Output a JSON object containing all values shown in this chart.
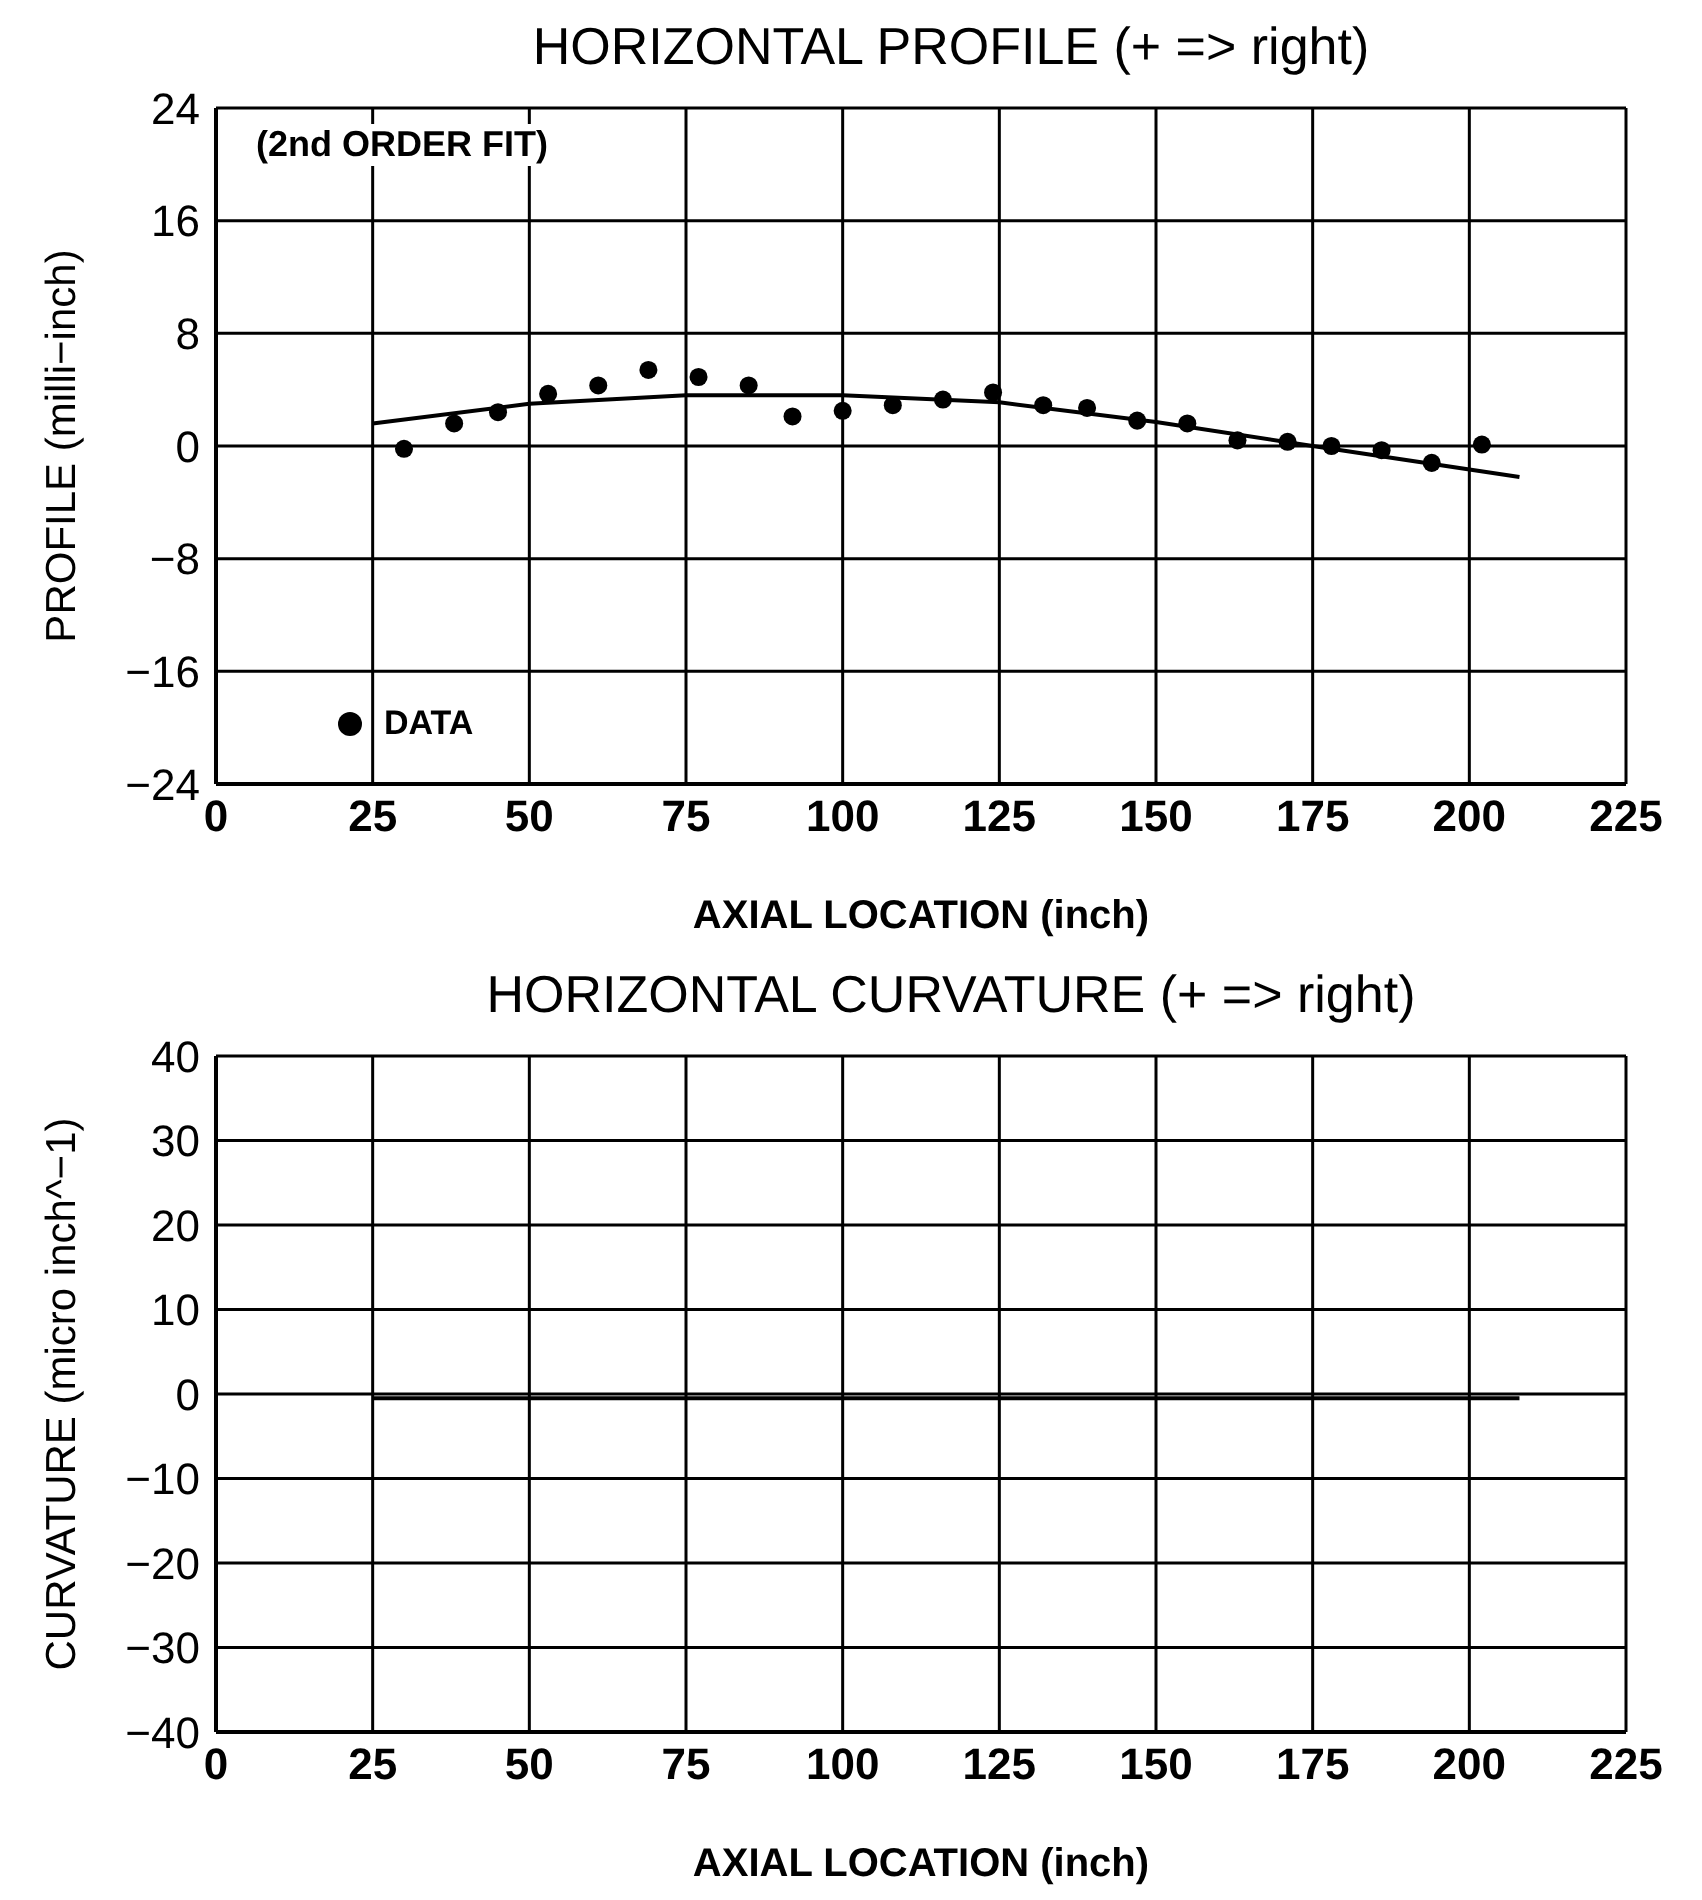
{
  "chart_data": [
    {
      "type": "scatter",
      "title": "HORIZONTAL PROFILE (+ => right)",
      "xlabel": "AXIAL LOCATION (inch)",
      "ylabel": "PROFILE (milli−inch)",
      "xlim": [
        0,
        225
      ],
      "xticks": [
        0,
        25,
        50,
        75,
        100,
        125,
        150,
        175,
        200,
        225
      ],
      "ylim": [
        -24,
        24
      ],
      "yticks": [
        -24,
        -16,
        -8,
        0,
        8,
        16,
        24
      ],
      "grid": true,
      "legend": "bottom left",
      "annotations": [
        "(2nd ORDER FIT)"
      ],
      "series": [
        {
          "name": "DATA",
          "marker": "circle",
          "color": "#000000",
          "x": [
            30,
            38,
            45,
            53,
            61,
            69,
            77,
            85,
            92,
            100,
            108,
            116,
            124,
            132,
            139,
            147,
            155,
            163,
            171,
            178,
            186,
            194,
            202
          ],
          "values": [
            -0.2,
            1.6,
            2.4,
            3.7,
            4.3,
            5.4,
            4.9,
            4.3,
            2.1,
            2.5,
            2.9,
            3.3,
            3.8,
            2.9,
            2.7,
            1.8,
            1.6,
            0.4,
            0.3,
            0,
            -0.3,
            -1.2,
            0.1
          ]
        },
        {
          "type": "line",
          "color": "#000000",
          "x": [
            25,
            50,
            75,
            100,
            125,
            150,
            175,
            208
          ],
          "values": [
            1.6,
            3.0,
            3.6,
            3.6,
            3.1,
            1.7,
            0.0,
            -2.2
          ]
        }
      ]
    },
    {
      "type": "line",
      "title": "HORIZONTAL CURVATURE (+ => right)",
      "xlabel": "AXIAL LOCATION (inch)",
      "ylabel": "CURVATURE (micro inch^−1)",
      "xlim": [
        0,
        225
      ],
      "xticks": [
        0,
        25,
        50,
        75,
        100,
        125,
        150,
        175,
        200,
        225
      ],
      "ylim": [
        -40,
        40
      ],
      "yticks": [
        -40,
        -30,
        -20,
        -10,
        0,
        10,
        20,
        30,
        40
      ],
      "grid": true,
      "legend": false,
      "series": [
        {
          "color": "#000000",
          "x": [
            25,
            208
          ],
          "values": [
            -0.5,
            -0.5
          ]
        }
      ]
    }
  ]
}
